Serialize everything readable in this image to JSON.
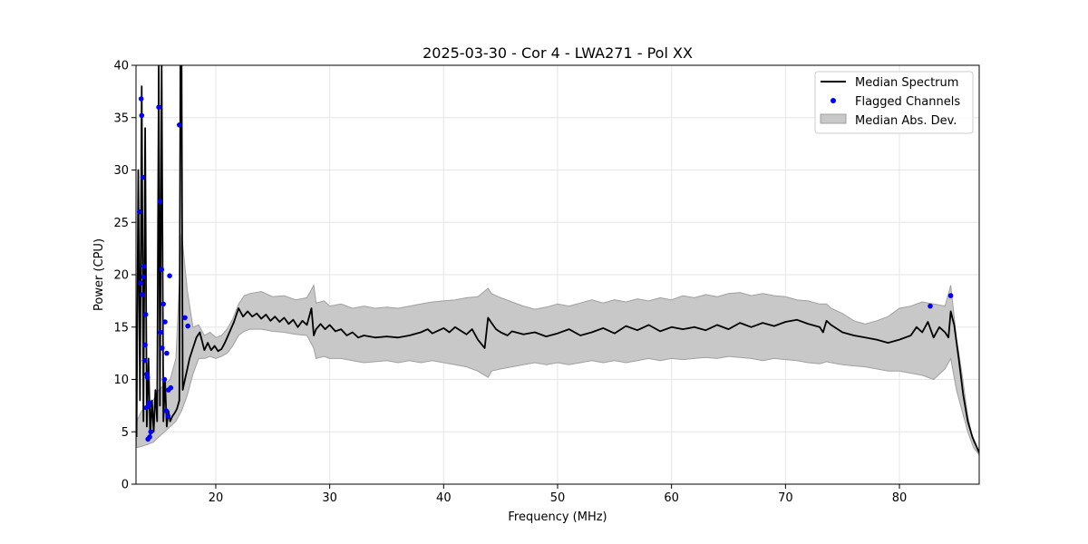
{
  "chart_data": {
    "type": "line",
    "title": "2025-03-30 - Cor 4 - LWA271 - Pol XX",
    "xlabel": "Frequency (MHz)",
    "ylabel": "Power (CPU)",
    "xlim": [
      13,
      87
    ],
    "ylim": [
      0,
      40
    ],
    "xticks": [
      20,
      30,
      40,
      50,
      60,
      70,
      80
    ],
    "yticks": [
      0,
      5,
      10,
      15,
      20,
      25,
      30,
      35,
      40
    ],
    "grid": true,
    "legend_position": "top-right",
    "legend": [
      "Median Spectrum",
      "Flagged Channels",
      "Median Abs. Dev."
    ],
    "colors": {
      "line": "#000000",
      "points": "#0000ff",
      "band": "#c8c8c8",
      "band_edge": "#a0a0a0"
    },
    "series": [
      {
        "name": "Median Spectrum",
        "kind": "line",
        "x": [
          13.05,
          13.2,
          13.35,
          13.5,
          13.65,
          13.8,
          13.95,
          14.1,
          14.25,
          14.4,
          14.55,
          14.7,
          14.85,
          15.0,
          15.1,
          15.25,
          15.4,
          15.55,
          15.7,
          15.85,
          16.0,
          16.2,
          16.4,
          16.6,
          16.8,
          16.9,
          17.0,
          17.1,
          17.3,
          17.5,
          17.7,
          18.0,
          18.3,
          18.6,
          19.0,
          19.3,
          19.6,
          19.9,
          20.2,
          20.5,
          20.8,
          21.2,
          21.6,
          22.0,
          22.4,
          22.8,
          23.2,
          23.6,
          24.0,
          24.4,
          24.8,
          25.2,
          25.6,
          26.0,
          26.4,
          26.8,
          27.2,
          27.6,
          28.0,
          28.4,
          28.6,
          28.8,
          29.2,
          29.6,
          30.0,
          30.5,
          31.0,
          31.5,
          32.0,
          32.5,
          33.0,
          34.0,
          35.0,
          36.0,
          37.0,
          38.0,
          38.6,
          39.0,
          40.0,
          40.5,
          41.0,
          42.0,
          42.5,
          43.0,
          43.6,
          43.9,
          44.2,
          44.6,
          45.0,
          45.6,
          46.0,
          47.0,
          48.0,
          49.0,
          50.0,
          51.0,
          52.0,
          53.0,
          54.0,
          55.0,
          56.0,
          57.0,
          58.0,
          59.0,
          60.0,
          61.0,
          62.0,
          63.0,
          64.0,
          65.0,
          66.0,
          67.0,
          68.0,
          69.0,
          70.0,
          71.0,
          72.0,
          73.0,
          73.3,
          73.6,
          74.0,
          75.0,
          76.0,
          77.0,
          78.0,
          79.0,
          80.0,
          81.0,
          81.5,
          82.0,
          82.5,
          83.0,
          83.5,
          84.0,
          84.3,
          84.5,
          84.8,
          85.2,
          85.6,
          86.0,
          86.4,
          86.8,
          87.0
        ],
        "y": [
          4.5,
          30.0,
          8.0,
          38.0,
          6.0,
          34.0,
          5.5,
          12.0,
          4.5,
          8.0,
          5.0,
          9.0,
          6.0,
          40.0,
          7.5,
          40.0,
          6.0,
          10.0,
          5.5,
          7.0,
          6.0,
          6.5,
          6.8,
          7.2,
          8.0,
          40.0,
          40.0,
          9.0,
          10.0,
          11.0,
          12.0,
          13.0,
          14.0,
          14.5,
          12.8,
          13.5,
          12.8,
          13.2,
          12.7,
          12.9,
          13.5,
          14.5,
          15.5,
          16.8,
          16.0,
          16.5,
          16.0,
          16.3,
          15.8,
          16.2,
          15.6,
          16.0,
          15.5,
          15.9,
          15.3,
          15.7,
          15.0,
          15.6,
          15.2,
          16.8,
          14.2,
          14.8,
          15.3,
          14.8,
          15.2,
          14.6,
          14.8,
          14.2,
          14.5,
          14.0,
          14.2,
          14.0,
          14.1,
          14.0,
          14.2,
          14.5,
          14.8,
          14.4,
          14.9,
          14.5,
          15.0,
          14.3,
          14.8,
          13.8,
          13.0,
          15.9,
          15.4,
          14.8,
          14.5,
          14.2,
          14.6,
          14.3,
          14.5,
          14.1,
          14.4,
          14.8,
          14.2,
          14.5,
          14.9,
          14.4,
          15.1,
          14.7,
          15.2,
          14.6,
          15.0,
          14.8,
          15.0,
          14.7,
          15.2,
          14.8,
          15.4,
          15.0,
          15.4,
          15.1,
          15.5,
          15.7,
          15.3,
          15.0,
          14.5,
          15.6,
          15.2,
          14.5,
          14.2,
          14.0,
          13.8,
          13.5,
          13.8,
          14.2,
          15.0,
          14.5,
          15.5,
          14.0,
          15.0,
          14.5,
          14.0,
          16.5,
          15.2,
          12.0,
          8.5,
          6.0,
          4.5,
          3.5,
          3.0
        ]
      },
      {
        "name": "Median Abs. Dev.",
        "kind": "band",
        "x": [
          13.05,
          13.5,
          14.0,
          14.5,
          15.0,
          15.5,
          16.0,
          16.5,
          17.0,
          17.5,
          18.0,
          18.5,
          19.0,
          19.5,
          20.0,
          20.5,
          21.0,
          21.5,
          22.0,
          22.5,
          23.0,
          24.0,
          25.0,
          26.0,
          27.0,
          28.0,
          28.6,
          28.8,
          29.5,
          30.0,
          31.0,
          32.0,
          33.0,
          34.0,
          35.0,
          36.0,
          37.0,
          38.0,
          39.0,
          40.0,
          41.0,
          42.0,
          43.0,
          43.9,
          44.2,
          45.0,
          46.0,
          47.0,
          48.0,
          49.0,
          50.0,
          51.0,
          52.0,
          53.0,
          54.0,
          55.0,
          56.0,
          57.0,
          58.0,
          59.0,
          60.0,
          61.0,
          62.0,
          63.0,
          64.0,
          65.0,
          66.0,
          67.0,
          68.0,
          69.0,
          70.0,
          71.0,
          72.0,
          73.0,
          73.6,
          74.0,
          75.0,
          76.0,
          77.0,
          78.0,
          79.0,
          80.0,
          81.0,
          82.0,
          83.0,
          84.0,
          84.5,
          85.0,
          85.5,
          86.0,
          86.5,
          87.0
        ],
        "upper": [
          6.0,
          7.0,
          7.5,
          8.0,
          9.0,
          9.5,
          10.0,
          12.0,
          24.0,
          18.5,
          15.0,
          15.2,
          14.2,
          14.5,
          14.0,
          14.2,
          14.8,
          15.8,
          17.2,
          18.0,
          18.2,
          18.4,
          17.9,
          18.0,
          17.6,
          17.8,
          19.0,
          17.3,
          17.5,
          17.0,
          17.2,
          16.8,
          17.0,
          16.8,
          16.9,
          16.8,
          17.0,
          17.2,
          17.4,
          17.5,
          17.6,
          17.8,
          17.9,
          18.7,
          18.2,
          17.8,
          17.4,
          17.0,
          16.7,
          16.9,
          17.2,
          17.0,
          17.3,
          17.6,
          17.3,
          17.6,
          17.4,
          17.7,
          17.5,
          17.8,
          17.6,
          18.0,
          17.8,
          18.1,
          17.9,
          18.2,
          18.3,
          18.0,
          18.2,
          18.0,
          17.9,
          17.6,
          17.5,
          17.2,
          17.2,
          16.8,
          16.3,
          15.6,
          15.3,
          15.6,
          16.0,
          16.8,
          17.0,
          17.4,
          17.2,
          17.0,
          19.0,
          14.0,
          10.5,
          6.5,
          4.0,
          3.2
        ],
        "lower": [
          3.5,
          3.6,
          3.8,
          4.0,
          4.5,
          5.0,
          5.5,
          6.0,
          7.0,
          8.5,
          10.5,
          12.0,
          12.0,
          12.2,
          12.0,
          12.2,
          12.5,
          13.2,
          14.2,
          14.6,
          14.8,
          14.8,
          14.6,
          14.5,
          14.3,
          14.2,
          13.0,
          12.0,
          12.2,
          12.0,
          12.0,
          11.8,
          11.6,
          11.7,
          11.8,
          11.6,
          11.8,
          11.6,
          11.8,
          11.6,
          11.4,
          11.2,
          10.8,
          10.2,
          10.8,
          11.0,
          11.2,
          11.4,
          11.6,
          11.4,
          11.6,
          11.4,
          11.6,
          11.8,
          11.6,
          11.8,
          11.6,
          11.8,
          12.0,
          11.8,
          12.0,
          11.9,
          12.0,
          12.1,
          12.0,
          12.2,
          12.1,
          12.0,
          11.8,
          12.0,
          11.9,
          11.8,
          11.6,
          11.5,
          11.7,
          11.6,
          11.4,
          11.3,
          11.2,
          11.0,
          10.8,
          10.8,
          10.6,
          10.4,
          10.0,
          11.0,
          12.0,
          9.0,
          7.0,
          5.0,
          3.5,
          2.8
        ]
      },
      {
        "name": "Flagged Channels",
        "kind": "scatter",
        "x": [
          13.3,
          13.45,
          13.6,
          13.7,
          13.85,
          13.95,
          14.1,
          14.2,
          13.5,
          13.65,
          13.8,
          14.0,
          14.3,
          13.4,
          13.55,
          13.75,
          13.9,
          14.05,
          14.15,
          15.0,
          15.1,
          15.25,
          15.4,
          15.55,
          15.7,
          15.85,
          16.05,
          15.15,
          15.3,
          15.5,
          15.65,
          15.8,
          15.95,
          16.8,
          17.3,
          17.55,
          82.7,
          84.5
        ],
        "y": [
          26.0,
          36.8,
          29.3,
          20.8,
          16.2,
          10.5,
          7.5,
          4.5,
          35.2,
          19.8,
          13.3,
          10.2,
          5.0,
          19.2,
          18.1,
          11.8,
          7.3,
          4.3,
          7.8,
          36.0,
          27.0,
          20.5,
          17.2,
          15.5,
          12.5,
          9.0,
          9.2,
          14.5,
          13.0,
          10.0,
          7.0,
          6.5,
          19.9,
          34.3,
          15.9,
          15.1,
          17.0,
          18.0
        ]
      }
    ]
  }
}
